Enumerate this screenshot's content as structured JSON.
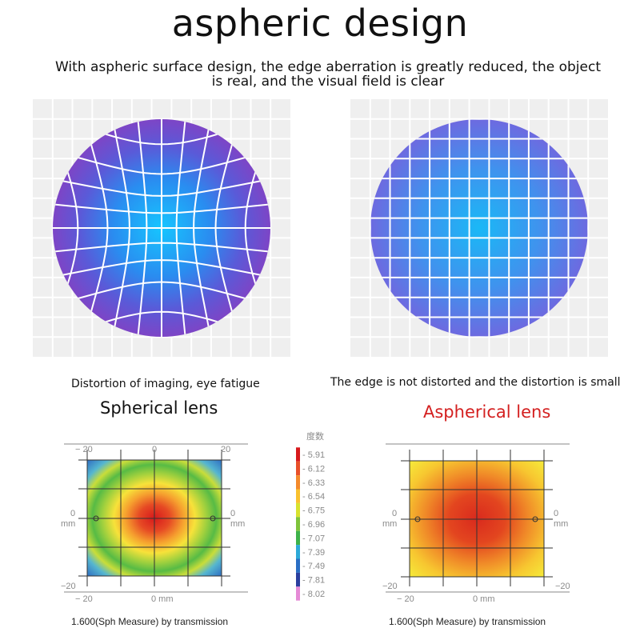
{
  "header": {
    "title": "aspheric design",
    "subtitle": "With aspheric surface design, the edge aberration is greatly reduced, the object is real, and the visual field is clear"
  },
  "left": {
    "caption": "Distortion of imaging, eye fatigue",
    "lens_name": "Spherical lens",
    "lens_name_color": "#111111",
    "footnote": "1.600(Sph Measure) by transmission"
  },
  "right": {
    "caption": "The edge is not distorted and the distortion is small",
    "lens_name": "Aspherical lens",
    "lens_name_color": "#d42020",
    "footnote": "1.600(Sph Measure) by transmission"
  },
  "axes": {
    "top_tick_left": "− 20",
    "top_tick_mid": "0",
    "top_tick_right": "20",
    "side_zero": "0",
    "side_unit": "mm",
    "bottom_left_corner": "−20",
    "bottom_right_corner": "−20",
    "bottom_tick_left": "− 20",
    "bottom_tick_mid": "0 mm"
  },
  "scale": {
    "title": "度数",
    "entries": [
      {
        "label": "5.91",
        "color": "#d7191c"
      },
      {
        "label": "6.12",
        "color": "#e8502a"
      },
      {
        "label": "6.33",
        "color": "#f48a2c"
      },
      {
        "label": "6.54",
        "color": "#f9c12f"
      },
      {
        "label": "6.75",
        "color": "#d8e22e"
      },
      {
        "label": "6.96",
        "color": "#7ec33b"
      },
      {
        "label": "7.07",
        "color": "#3eb24a"
      },
      {
        "label": "7.39",
        "color": "#2da9d8"
      },
      {
        "label": "7.49",
        "color": "#2a6fc4"
      },
      {
        "label": "7.81",
        "color": "#2b3f9e"
      },
      {
        "label": "8.02",
        "color": "#e58ad6"
      }
    ]
  },
  "colors": {
    "grid_bg": "#f0f0f0",
    "grid_line": "#ffffff",
    "spherical_center": "#1fb6f5",
    "spherical_edge": "#7a46c8",
    "aspherical_center": "#21b4f4",
    "aspherical_edge": "#6f6ae0"
  }
}
